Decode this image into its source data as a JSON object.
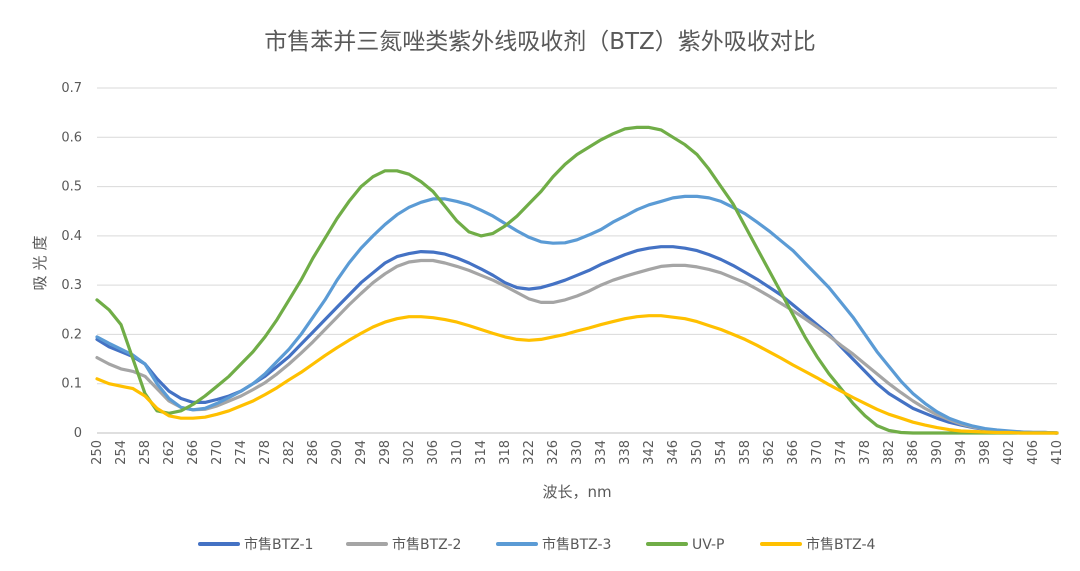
{
  "chart_data": {
    "type": "line",
    "title": "市售苯并三氮唑类紫外线吸收剂（BTZ）紫外吸收对比",
    "xlabel": "波长，nm",
    "ylabel": "吸光度",
    "xlim": [
      250,
      410
    ],
    "ylim": [
      0,
      0.7
    ],
    "x_ticks": [
      250,
      254,
      258,
      262,
      266,
      270,
      274,
      278,
      282,
      286,
      290,
      294,
      298,
      302,
      306,
      310,
      314,
      318,
      322,
      326,
      330,
      334,
      338,
      342,
      346,
      350,
      354,
      358,
      362,
      366,
      370,
      374,
      378,
      382,
      386,
      390,
      394,
      398,
      402,
      406,
      410
    ],
    "y_ticks": [
      0,
      0.1,
      0.2,
      0.3,
      0.4,
      0.5,
      0.6,
      0.7
    ],
    "y_tick_labels": [
      "0",
      "0.1",
      "0.2",
      "0.3",
      "0.4",
      "0.5",
      "0.6",
      "0.7"
    ],
    "grid": "horizontal",
    "legend_position": "bottom",
    "x": [
      250,
      252,
      254,
      256,
      258,
      260,
      262,
      264,
      266,
      268,
      270,
      272,
      274,
      276,
      278,
      280,
      282,
      284,
      286,
      288,
      290,
      292,
      294,
      296,
      298,
      300,
      302,
      304,
      306,
      308,
      310,
      312,
      314,
      316,
      318,
      320,
      322,
      324,
      326,
      328,
      330,
      332,
      334,
      336,
      338,
      340,
      342,
      344,
      346,
      348,
      350,
      352,
      354,
      356,
      358,
      360,
      362,
      364,
      366,
      368,
      370,
      372,
      374,
      376,
      378,
      380,
      382,
      384,
      386,
      388,
      390,
      392,
      394,
      396,
      398,
      400,
      402,
      404,
      406,
      408,
      410
    ],
    "series": [
      {
        "name": "市售BTZ-1",
        "color": "#4472C4",
        "values": [
          0.19,
          0.175,
          0.165,
          0.155,
          0.14,
          0.11,
          0.085,
          0.07,
          0.062,
          0.062,
          0.068,
          0.075,
          0.085,
          0.1,
          0.115,
          0.135,
          0.155,
          0.18,
          0.205,
          0.23,
          0.255,
          0.28,
          0.305,
          0.325,
          0.345,
          0.358,
          0.364,
          0.368,
          0.367,
          0.363,
          0.355,
          0.345,
          0.333,
          0.32,
          0.305,
          0.295,
          0.292,
          0.295,
          0.302,
          0.31,
          0.32,
          0.33,
          0.342,
          0.352,
          0.362,
          0.37,
          0.375,
          0.378,
          0.378,
          0.375,
          0.37,
          0.362,
          0.352,
          0.34,
          0.326,
          0.312,
          0.296,
          0.28,
          0.26,
          0.24,
          0.22,
          0.2,
          0.175,
          0.15,
          0.125,
          0.1,
          0.08,
          0.065,
          0.05,
          0.04,
          0.03,
          0.022,
          0.016,
          0.011,
          0.007,
          0.005,
          0.003,
          0.002,
          0.001,
          0.001,
          0
        ]
      },
      {
        "name": "市售BTZ-2",
        "color": "#A5A5A5",
        "values": [
          0.153,
          0.14,
          0.13,
          0.125,
          0.115,
          0.09,
          0.065,
          0.052,
          0.047,
          0.048,
          0.055,
          0.065,
          0.075,
          0.088,
          0.102,
          0.12,
          0.14,
          0.162,
          0.185,
          0.21,
          0.235,
          0.26,
          0.283,
          0.305,
          0.323,
          0.338,
          0.347,
          0.35,
          0.35,
          0.345,
          0.338,
          0.33,
          0.32,
          0.31,
          0.298,
          0.285,
          0.272,
          0.265,
          0.265,
          0.27,
          0.278,
          0.288,
          0.3,
          0.31,
          0.318,
          0.325,
          0.332,
          0.338,
          0.34,
          0.34,
          0.337,
          0.332,
          0.325,
          0.315,
          0.305,
          0.292,
          0.278,
          0.263,
          0.248,
          0.232,
          0.215,
          0.197,
          0.178,
          0.16,
          0.14,
          0.12,
          0.1,
          0.082,
          0.065,
          0.05,
          0.037,
          0.027,
          0.018,
          0.012,
          0.008,
          0.005,
          0.003,
          0.002,
          0.001,
          0.001,
          0
        ]
      },
      {
        "name": "市售BTZ-3",
        "color": "#5B9BD5",
        "values": [
          0.195,
          0.182,
          0.17,
          0.158,
          0.14,
          0.1,
          0.07,
          0.052,
          0.047,
          0.05,
          0.06,
          0.072,
          0.085,
          0.1,
          0.12,
          0.145,
          0.17,
          0.2,
          0.235,
          0.27,
          0.31,
          0.345,
          0.375,
          0.4,
          0.423,
          0.443,
          0.458,
          0.468,
          0.475,
          0.475,
          0.47,
          0.463,
          0.452,
          0.44,
          0.425,
          0.41,
          0.397,
          0.388,
          0.385,
          0.386,
          0.392,
          0.402,
          0.413,
          0.428,
          0.44,
          0.453,
          0.463,
          0.47,
          0.477,
          0.48,
          0.48,
          0.477,
          0.47,
          0.458,
          0.445,
          0.428,
          0.41,
          0.39,
          0.37,
          0.345,
          0.32,
          0.295,
          0.265,
          0.235,
          0.2,
          0.165,
          0.135,
          0.105,
          0.08,
          0.06,
          0.043,
          0.03,
          0.021,
          0.014,
          0.009,
          0.006,
          0.004,
          0.002,
          0.001,
          0.001,
          0
        ]
      },
      {
        "name": "UV-P",
        "color": "#70AD47",
        "values": [
          0.27,
          0.25,
          0.22,
          0.15,
          0.08,
          0.045,
          0.04,
          0.045,
          0.058,
          0.075,
          0.095,
          0.115,
          0.14,
          0.165,
          0.195,
          0.23,
          0.27,
          0.31,
          0.355,
          0.395,
          0.435,
          0.47,
          0.5,
          0.52,
          0.532,
          0.532,
          0.525,
          0.51,
          0.49,
          0.46,
          0.43,
          0.408,
          0.4,
          0.405,
          0.42,
          0.44,
          0.465,
          0.49,
          0.52,
          0.545,
          0.565,
          0.58,
          0.595,
          0.607,
          0.617,
          0.62,
          0.62,
          0.615,
          0.6,
          0.585,
          0.565,
          0.535,
          0.5,
          0.465,
          0.42,
          0.375,
          0.33,
          0.285,
          0.24,
          0.195,
          0.155,
          0.12,
          0.09,
          0.06,
          0.035,
          0.015,
          0.005,
          0.001,
          0,
          0,
          0,
          0,
          0,
          0,
          0,
          0,
          0,
          0,
          0,
          0,
          0
        ]
      },
      {
        "name": "市售BTZ-4",
        "color": "#FFC000",
        "values": [
          0.11,
          0.1,
          0.095,
          0.09,
          0.075,
          0.05,
          0.035,
          0.03,
          0.03,
          0.032,
          0.038,
          0.045,
          0.055,
          0.065,
          0.078,
          0.092,
          0.108,
          0.123,
          0.14,
          0.157,
          0.173,
          0.188,
          0.202,
          0.215,
          0.225,
          0.232,
          0.236,
          0.236,
          0.234,
          0.23,
          0.225,
          0.218,
          0.21,
          0.202,
          0.195,
          0.19,
          0.188,
          0.19,
          0.195,
          0.2,
          0.207,
          0.213,
          0.22,
          0.226,
          0.232,
          0.236,
          0.238,
          0.238,
          0.235,
          0.232,
          0.226,
          0.218,
          0.21,
          0.2,
          0.19,
          0.178,
          0.165,
          0.152,
          0.138,
          0.125,
          0.112,
          0.098,
          0.085,
          0.072,
          0.06,
          0.048,
          0.038,
          0.03,
          0.022,
          0.016,
          0.011,
          0.007,
          0.004,
          0.003,
          0.002,
          0.001,
          0.001,
          0,
          0,
          0,
          0
        ]
      }
    ]
  }
}
